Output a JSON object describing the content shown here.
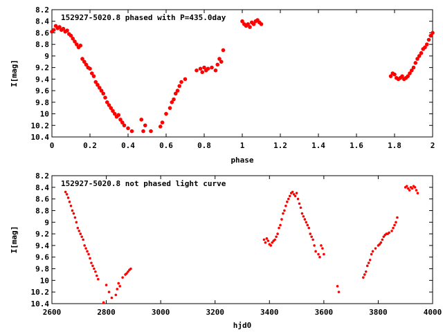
{
  "chart_data": [
    {
      "type": "scatter",
      "title": "152927-5020.8 phased with P=435.0day",
      "xlabel": "phase",
      "ylabel": "I[mag]",
      "xlim": [
        0,
        2
      ],
      "ylim": [
        8.2,
        10.4
      ],
      "y_inverted": true,
      "grid": false,
      "marker_color": "#ff0000",
      "x_ticks": [
        "0",
        "0.2",
        "0.4",
        "0.6",
        "0.8",
        "1",
        "1.2",
        "1.4",
        "1.6",
        "1.8",
        "2"
      ],
      "y_ticks": [
        "8.2",
        "8.4",
        "8.6",
        "8.8",
        "9",
        "9.2",
        "9.4",
        "9.6",
        "9.8",
        "10",
        "10.2",
        "10.4"
      ],
      "series": [
        {
          "x": [
            0.0,
            0.01,
            0.02,
            0.03,
            0.04,
            0.05,
            0.06,
            0.07,
            0.08,
            0.09,
            0.1,
            0.11,
            0.12,
            0.13,
            0.14,
            0.15,
            0.16,
            0.17,
            0.18,
            0.19,
            0.2,
            0.21,
            0.22,
            0.23,
            0.24,
            0.25,
            0.26,
            0.27,
            0.28,
            0.29,
            0.3,
            0.31,
            0.32,
            0.33,
            0.34,
            0.35,
            0.36,
            0.37,
            0.38,
            0.4,
            0.42,
            0.47,
            0.48,
            0.49,
            0.52,
            0.57,
            0.58,
            0.6,
            0.62,
            0.63,
            0.64,
            0.65,
            0.66,
            0.67,
            0.68,
            0.7,
            0.76,
            0.78,
            0.79,
            0.8,
            0.81,
            0.82,
            0.84,
            0.86,
            0.87,
            0.88,
            0.89,
            0.9,
            1.0,
            1.01,
            1.02,
            1.03,
            1.04,
            1.05,
            1.06,
            1.07,
            1.08,
            1.09,
            1.1,
            1.78,
            1.79,
            1.8,
            1.81,
            1.82,
            1.83,
            1.84,
            1.85,
            1.86,
            1.87,
            1.88,
            1.89,
            1.9,
            1.91,
            1.92,
            1.93,
            1.94,
            1.95,
            1.96,
            1.97,
            1.98,
            1.99,
            2.0
          ],
          "y": [
            8.58,
            8.55,
            8.48,
            8.52,
            8.5,
            8.55,
            8.53,
            8.58,
            8.56,
            8.62,
            8.65,
            8.7,
            8.75,
            8.8,
            8.85,
            8.82,
            9.05,
            9.1,
            9.15,
            9.2,
            9.22,
            9.3,
            9.35,
            9.45,
            9.5,
            9.55,
            9.6,
            9.65,
            9.72,
            9.8,
            9.85,
            9.9,
            9.95,
            10.0,
            10.05,
            10.02,
            10.1,
            10.15,
            10.2,
            10.25,
            10.3,
            10.1,
            10.3,
            10.2,
            10.3,
            10.22,
            10.15,
            10.0,
            9.9,
            9.8,
            9.75,
            9.65,
            9.6,
            9.52,
            9.45,
            9.4,
            9.25,
            9.22,
            9.28,
            9.2,
            9.25,
            9.22,
            9.2,
            9.25,
            9.15,
            9.05,
            9.1,
            8.9,
            8.4,
            8.45,
            8.48,
            8.45,
            8.5,
            8.42,
            8.45,
            8.4,
            8.38,
            8.42,
            8.45,
            9.35,
            9.3,
            9.32,
            9.38,
            9.4,
            9.38,
            9.35,
            9.4,
            9.38,
            9.35,
            9.3,
            9.25,
            9.2,
            9.12,
            9.05,
            9.0,
            8.95,
            8.88,
            8.85,
            8.8,
            8.72,
            8.65,
            8.6
          ]
        }
      ]
    },
    {
      "type": "scatter",
      "title": "152927-5020.8 not phased light curve",
      "xlabel": "hjd0",
      "ylabel": "I[mag]",
      "xlim": [
        2600,
        4000
      ],
      "ylim": [
        8.2,
        10.4
      ],
      "y_inverted": true,
      "grid": false,
      "marker_color": "#ff0000",
      "x_ticks": [
        "2600",
        "2800",
        "3000",
        "3200",
        "3400",
        "3600",
        "3800",
        "4000"
      ],
      "y_ticks": [
        "8.2",
        "8.4",
        "8.6",
        "8.8",
        "9",
        "9.2",
        "9.4",
        "9.6",
        "9.8",
        "10",
        "10.2",
        "10.4"
      ],
      "series": [
        {
          "x": [
            2650,
            2655,
            2660,
            2665,
            2670,
            2675,
            2680,
            2685,
            2690,
            2695,
            2700,
            2705,
            2710,
            2715,
            2720,
            2725,
            2730,
            2735,
            2740,
            2745,
            2750,
            2755,
            2760,
            2765,
            2770,
            2790,
            2800,
            2810,
            2820,
            2835,
            2840,
            2845,
            2850,
            2860,
            2870,
            2875,
            2880,
            2885,
            2890,
            3380,
            3385,
            3390,
            3395,
            3400,
            3405,
            3410,
            3415,
            3420,
            3425,
            3430,
            3435,
            3440,
            3445,
            3450,
            3455,
            3460,
            3465,
            3470,
            3475,
            3480,
            3485,
            3490,
            3495,
            3500,
            3505,
            3510,
            3515,
            3520,
            3525,
            3530,
            3535,
            3540,
            3545,
            3550,
            3555,
            3560,
            3565,
            3570,
            3580,
            3585,
            3590,
            3595,
            3600,
            3650,
            3655,
            3745,
            3750,
            3755,
            3760,
            3765,
            3770,
            3775,
            3780,
            3790,
            3800,
            3805,
            3810,
            3815,
            3820,
            3825,
            3830,
            3835,
            3840,
            3850,
            3855,
            3860,
            3865,
            3870,
            3900,
            3905,
            3910,
            3915,
            3920,
            3925,
            3930,
            3935,
            3940,
            3945
          ],
          "y": [
            8.48,
            8.52,
            8.58,
            8.65,
            8.72,
            8.8,
            8.85,
            8.92,
            9.0,
            9.1,
            9.15,
            9.2,
            9.25,
            9.3,
            9.4,
            9.45,
            9.5,
            9.55,
            9.62,
            9.7,
            9.75,
            9.8,
            9.85,
            9.92,
            9.98,
            10.38,
            10.08,
            10.2,
            10.3,
            10.25,
            10.15,
            10.05,
            10.1,
            9.95,
            9.9,
            9.88,
            9.85,
            9.82,
            9.8,
            9.3,
            9.35,
            9.28,
            9.32,
            9.38,
            9.4,
            9.35,
            9.32,
            9.3,
            9.25,
            9.2,
            9.1,
            9.05,
            8.95,
            8.85,
            8.8,
            8.72,
            8.65,
            8.6,
            8.55,
            8.5,
            8.48,
            8.52,
            8.55,
            8.5,
            8.6,
            8.68,
            8.75,
            8.85,
            8.9,
            8.95,
            9.0,
            9.05,
            9.1,
            9.2,
            9.25,
            9.3,
            9.4,
            9.5,
            9.55,
            9.6,
            9.4,
            9.45,
            9.55,
            10.1,
            10.2,
            9.95,
            9.9,
            9.85,
            9.75,
            9.7,
            9.65,
            9.55,
            9.5,
            9.45,
            9.4,
            9.38,
            9.35,
            9.3,
            9.25,
            9.22,
            9.2,
            9.2,
            9.18,
            9.15,
            9.1,
            9.05,
            9.0,
            8.92,
            8.4,
            8.38,
            8.42,
            8.45,
            8.4,
            8.42,
            8.38,
            8.4,
            8.45,
            8.5
          ]
        }
      ]
    }
  ]
}
